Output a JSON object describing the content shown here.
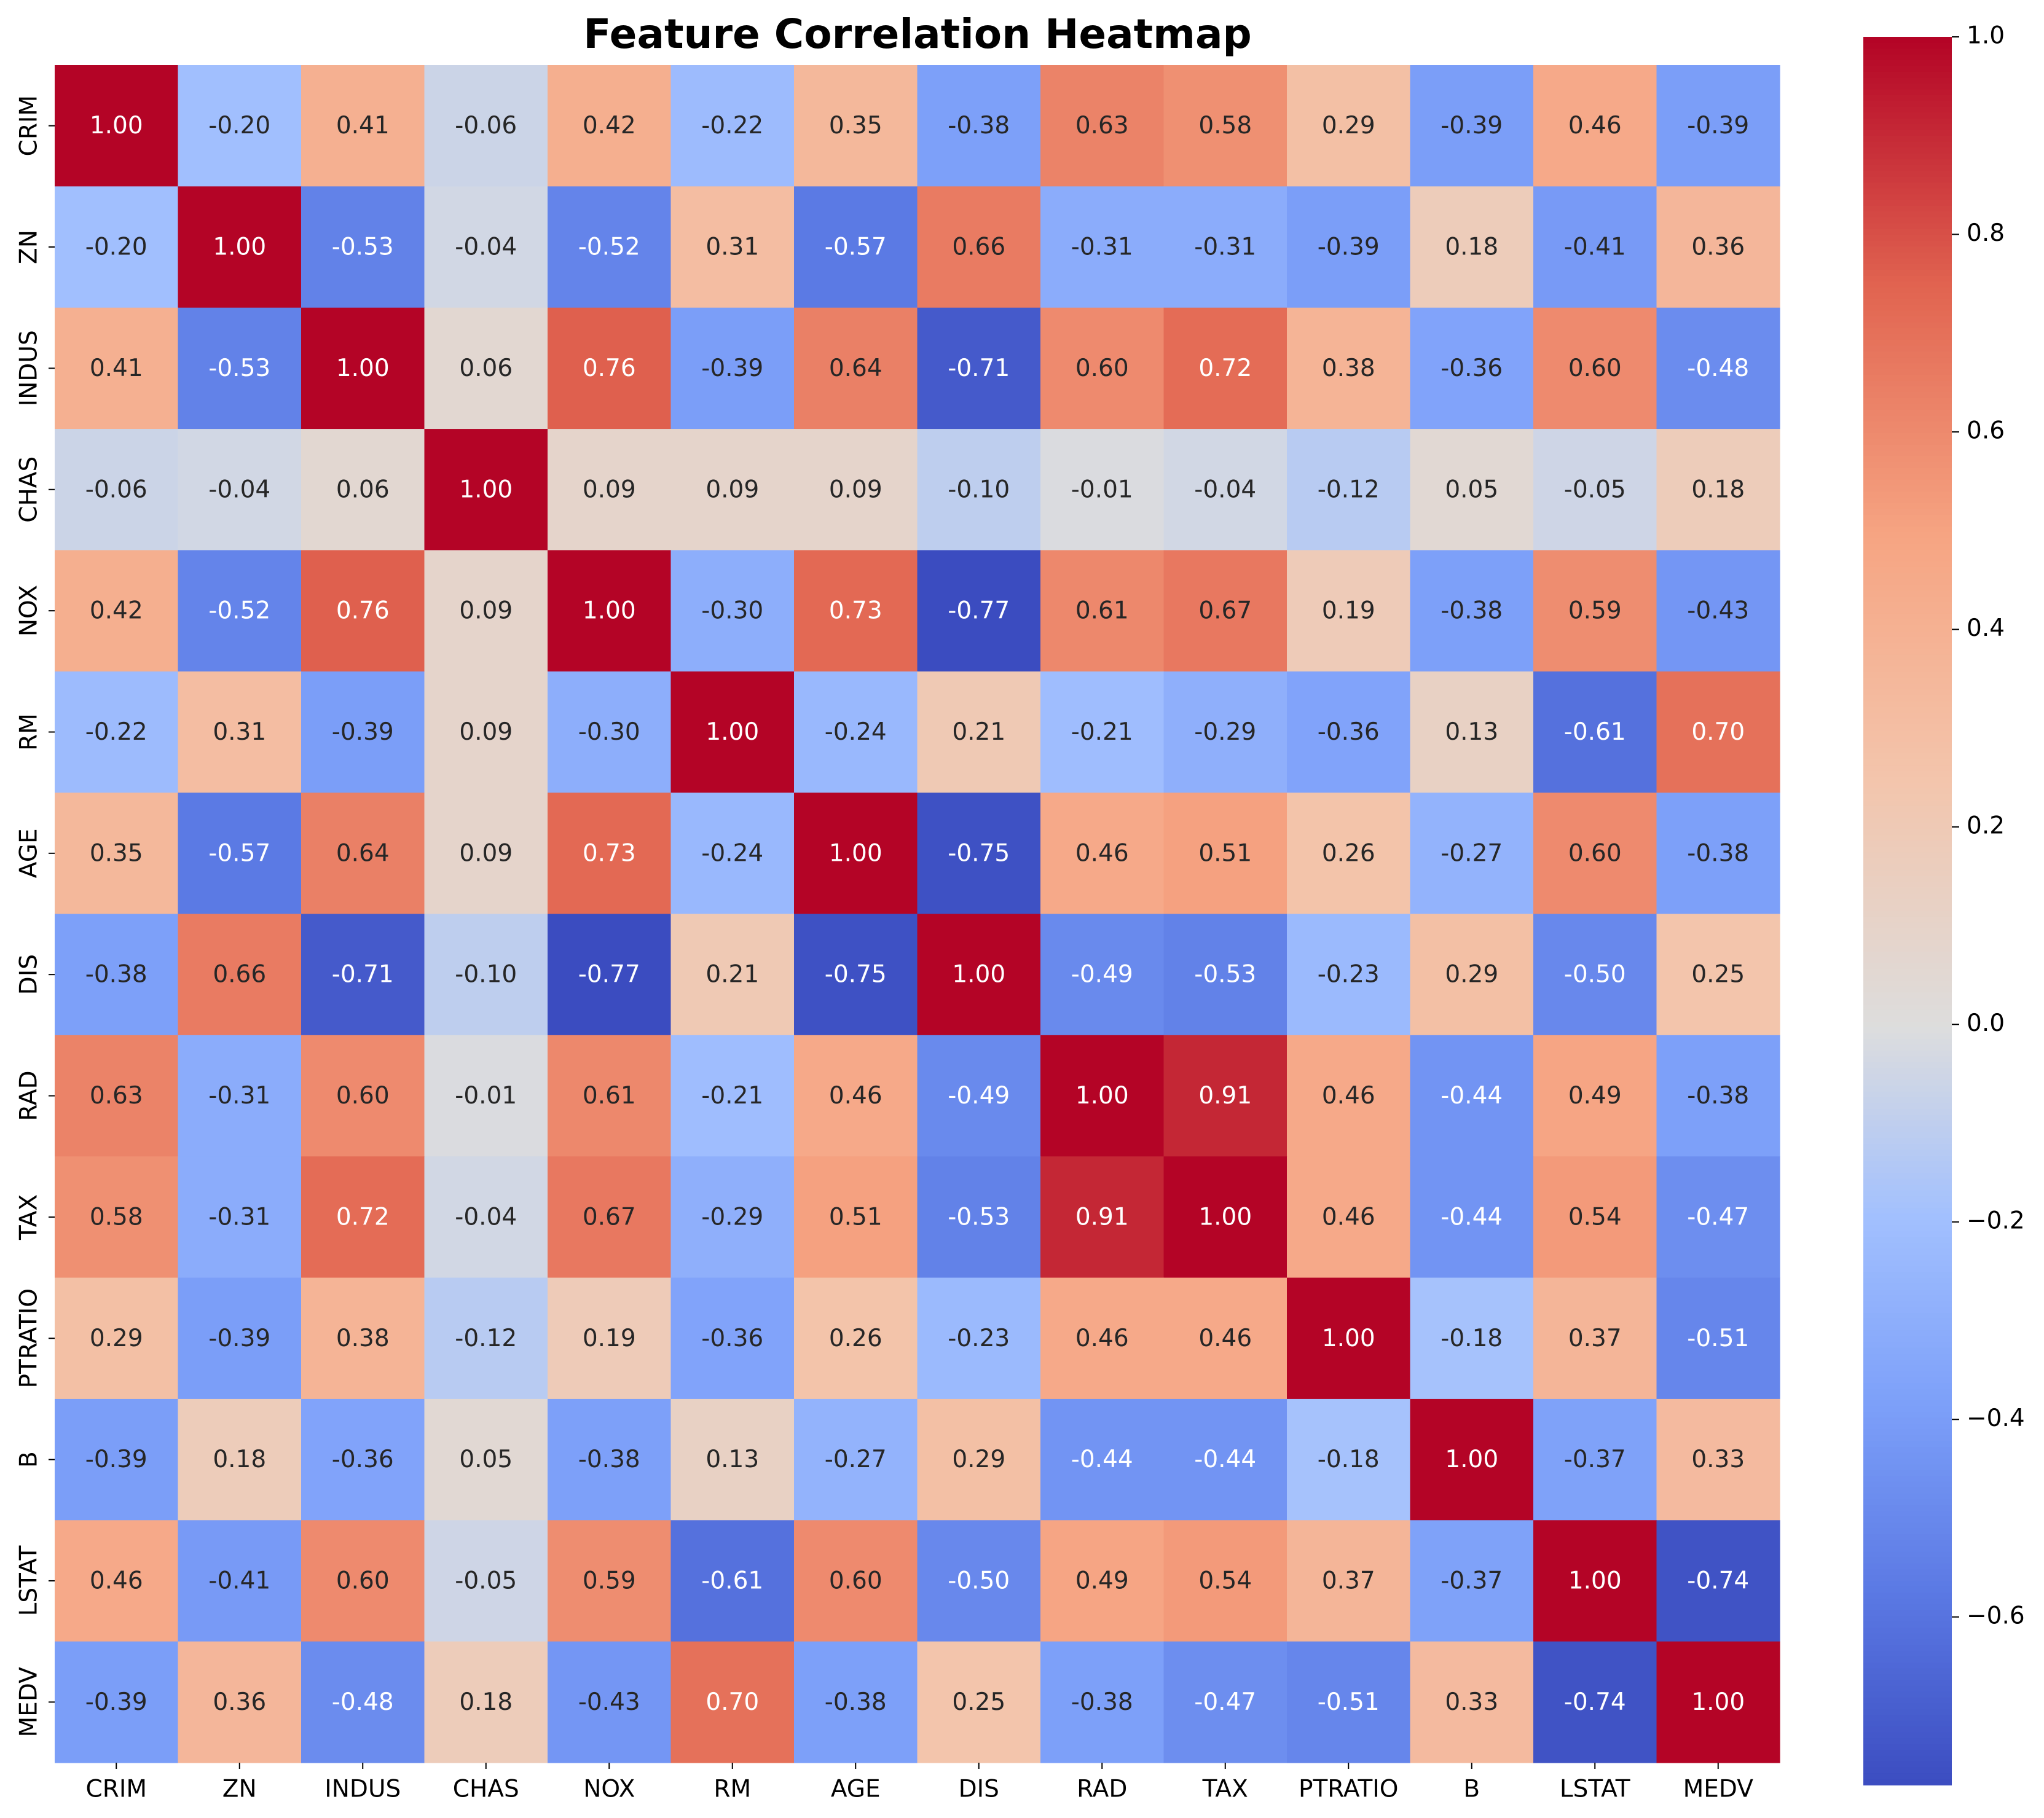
{
  "chart_data": {
    "type": "heatmap",
    "title": "Feature Correlation Heatmap",
    "xlabel": "",
    "ylabel": "",
    "colormap": "coolwarm",
    "annotation_format": "0.00",
    "labels": [
      "CRIM",
      "ZN",
      "INDUS",
      "CHAS",
      "NOX",
      "RM",
      "AGE",
      "DIS",
      "RAD",
      "TAX",
      "PTRATIO",
      "B",
      "LSTAT",
      "MEDV"
    ],
    "values": [
      [
        1.0,
        -0.2,
        0.41,
        -0.06,
        0.42,
        -0.22,
        0.35,
        -0.38,
        0.63,
        0.58,
        0.29,
        -0.39,
        0.46,
        -0.39
      ],
      [
        -0.2,
        1.0,
        -0.53,
        -0.04,
        -0.52,
        0.31,
        -0.57,
        0.66,
        -0.31,
        -0.31,
        -0.39,
        0.18,
        -0.41,
        0.36
      ],
      [
        0.41,
        -0.53,
        1.0,
        0.06,
        0.76,
        -0.39,
        0.64,
        -0.71,
        0.6,
        0.72,
        0.38,
        -0.36,
        0.6,
        -0.48
      ],
      [
        -0.06,
        -0.04,
        0.06,
        1.0,
        0.09,
        0.09,
        0.09,
        -0.1,
        -0.01,
        -0.04,
        -0.12,
        0.05,
        -0.05,
        0.18
      ],
      [
        0.42,
        -0.52,
        0.76,
        0.09,
        1.0,
        -0.3,
        0.73,
        -0.77,
        0.61,
        0.67,
        0.19,
        -0.38,
        0.59,
        -0.43
      ],
      [
        -0.22,
        0.31,
        -0.39,
        0.09,
        -0.3,
        1.0,
        -0.24,
        0.21,
        -0.21,
        -0.29,
        -0.36,
        0.13,
        -0.61,
        0.7
      ],
      [
        0.35,
        -0.57,
        0.64,
        0.09,
        0.73,
        -0.24,
        1.0,
        -0.75,
        0.46,
        0.51,
        0.26,
        -0.27,
        0.6,
        -0.38
      ],
      [
        -0.38,
        0.66,
        -0.71,
        -0.1,
        -0.77,
        0.21,
        -0.75,
        1.0,
        -0.49,
        -0.53,
        -0.23,
        0.29,
        -0.5,
        0.25
      ],
      [
        0.63,
        -0.31,
        0.6,
        -0.01,
        0.61,
        -0.21,
        0.46,
        -0.49,
        1.0,
        0.91,
        0.46,
        -0.44,
        0.49,
        -0.38
      ],
      [
        0.58,
        -0.31,
        0.72,
        -0.04,
        0.67,
        -0.29,
        0.51,
        -0.53,
        0.91,
        1.0,
        0.46,
        -0.44,
        0.54,
        -0.47
      ],
      [
        0.29,
        -0.39,
        0.38,
        -0.12,
        0.19,
        -0.36,
        0.26,
        -0.23,
        0.46,
        0.46,
        1.0,
        -0.18,
        0.37,
        -0.51
      ],
      [
        -0.39,
        0.18,
        -0.36,
        0.05,
        -0.38,
        0.13,
        -0.27,
        0.29,
        -0.44,
        -0.44,
        -0.18,
        1.0,
        -0.37,
        0.33
      ],
      [
        0.46,
        -0.41,
        0.6,
        -0.05,
        0.59,
        -0.61,
        0.6,
        -0.5,
        0.49,
        0.54,
        0.37,
        -0.37,
        1.0,
        -0.74
      ],
      [
        -0.39,
        0.36,
        -0.48,
        0.18,
        -0.43,
        0.7,
        -0.38,
        0.25,
        -0.38,
        -0.47,
        -0.51,
        0.33,
        -0.74,
        1.0
      ]
    ],
    "colorbar": {
      "vmin": -0.77,
      "vmax": 1.0,
      "ticks": [
        1.0,
        0.8,
        0.6,
        0.4,
        0.2,
        0.0,
        -0.2,
        -0.4,
        -0.6
      ],
      "tick_labels": [
        "1.0",
        "0.8",
        "0.6",
        "0.4",
        "0.2",
        "0.0",
        "−0.2",
        "−0.4",
        "−0.6"
      ]
    },
    "grid": false,
    "legend": "colorbar-right"
  }
}
